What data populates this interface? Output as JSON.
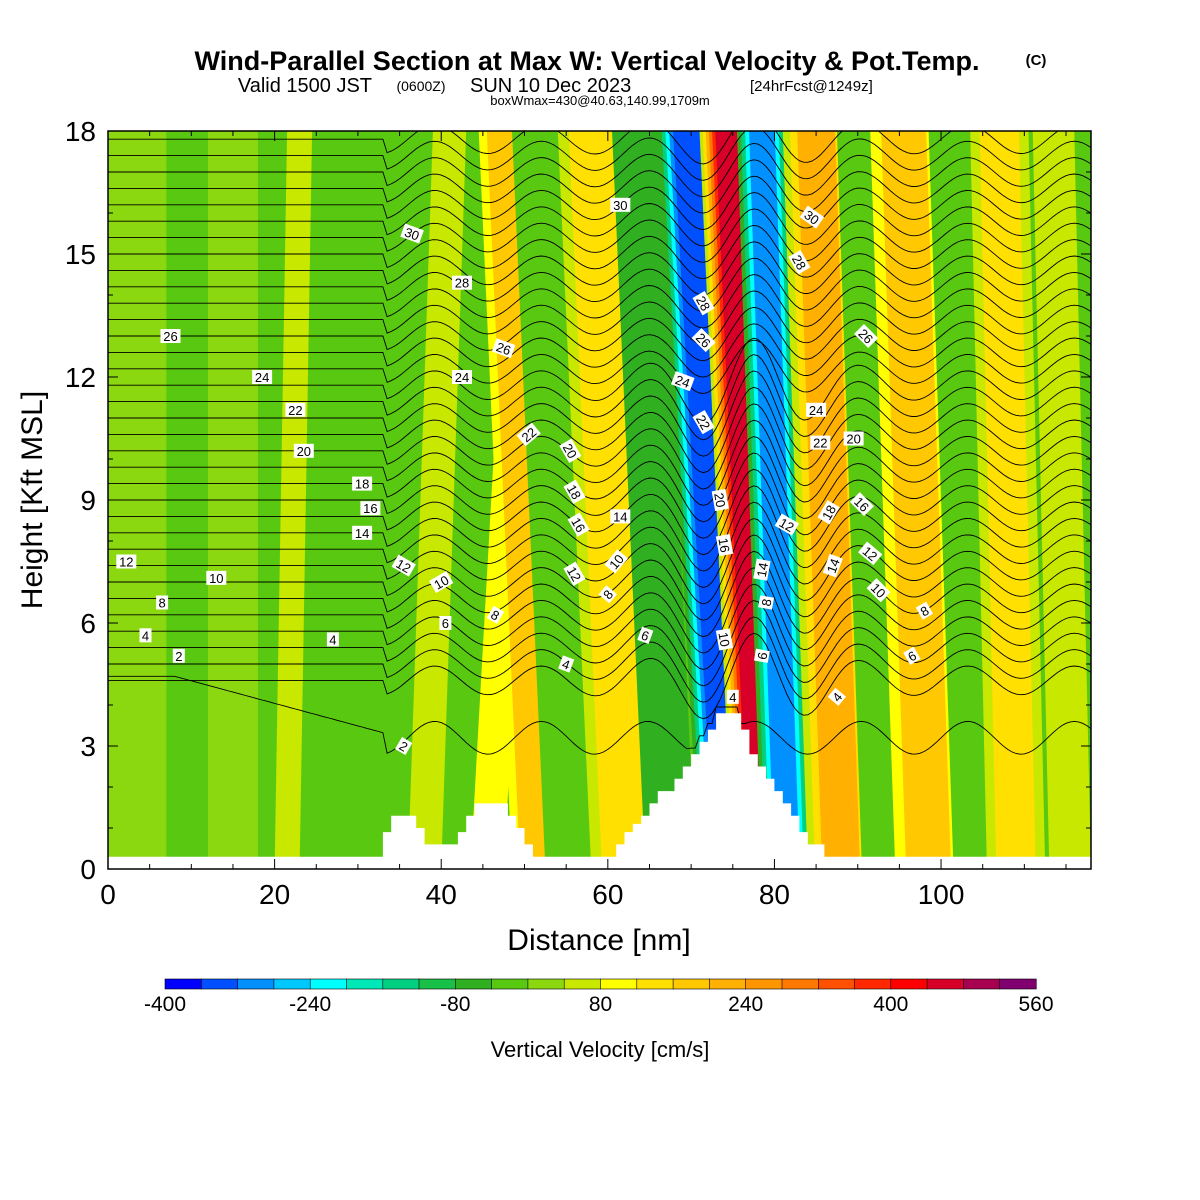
{
  "title": {
    "main": "Wind-Parallel Section at Max W: Vertical Velocity & Pot.Temp.",
    "copyright": "(C)",
    "valid_prefix": "Valid 1500 JST",
    "valid_utc": "(0600Z)",
    "valid_date": "SUN 10 Dec 2023",
    "forecast": "[24hrFcst@1249z]",
    "boxwmax": "boxWmax=430@40.63,140.99,1709m"
  },
  "colorbar": {
    "label": "Vertical Velocity [cm/s]",
    "tick_labels": [
      "-400",
      "-240",
      "-80",
      "80",
      "240",
      "400",
      "560"
    ],
    "levels": [
      -400,
      -360,
      -320,
      -280,
      -240,
      -200,
      -160,
      -120,
      -80,
      -40,
      0,
      40,
      80,
      120,
      160,
      200,
      240,
      280,
      320,
      360,
      400,
      440,
      480,
      520,
      560
    ],
    "colors": [
      "#0000ff",
      "#0050ff",
      "#0090ff",
      "#00c8ff",
      "#00ffff",
      "#00e8b8",
      "#00d080",
      "#18c048",
      "#30b020",
      "#58c810",
      "#8cd810",
      "#c8e800",
      "#ffff00",
      "#ffe000",
      "#ffc800",
      "#ffb000",
      "#ff9600",
      "#ff7800",
      "#ff5000",
      "#ff2800",
      "#ff0000",
      "#d80028",
      "#a80050",
      "#800070",
      "#500090"
    ]
  },
  "chart_data": {
    "type": "heatmap",
    "xlabel": "Distance [nm]",
    "ylabel": "Height [Kft MSL]",
    "xlim": [
      0,
      118
    ],
    "ylim": [
      0,
      18
    ],
    "x_ticks": [
      0,
      20,
      40,
      60,
      80,
      100
    ],
    "y_ticks": [
      0,
      3,
      6,
      9,
      12,
      15,
      18
    ],
    "grid": false,
    "field": "Vertical Velocity [cm/s]",
    "contours": "Potential temperature",
    "terrain_profile": {
      "x": [
        0,
        32,
        33,
        34,
        35,
        36,
        37,
        38,
        39,
        40,
        41,
        42,
        43,
        44,
        45,
        46,
        47,
        48,
        49,
        50,
        51,
        52,
        53,
        54,
        55,
        56,
        57,
        58,
        59,
        60,
        61,
        62,
        63,
        64,
        65,
        66,
        67,
        68,
        69,
        70,
        71,
        72,
        73,
        74,
        75,
        76,
        77,
        78,
        79,
        80,
        81,
        82,
        83,
        84,
        85,
        86,
        118
      ],
      "height": [
        0.3,
        0.3,
        0.9,
        1.3,
        1.3,
        1.3,
        1.0,
        0.6,
        0.6,
        0.6,
        0.6,
        0.9,
        1.3,
        1.6,
        1.6,
        1.6,
        1.6,
        1.3,
        1.0,
        0.6,
        0.3,
        0.3,
        0.3,
        0.3,
        0.3,
        0.3,
        0.3,
        0.3,
        0.3,
        0.3,
        0.6,
        0.9,
        1.1,
        1.3,
        1.6,
        1.9,
        1.9,
        2.2,
        2.5,
        2.8,
        3.1,
        3.4,
        3.8,
        3.8,
        3.8,
        3.4,
        2.8,
        2.5,
        2.2,
        1.9,
        1.6,
        1.3,
        0.9,
        0.6,
        0.6,
        0.3,
        0.3
      ]
    },
    "bands": [
      {
        "x": 3,
        "w": 8,
        "tilt": 0,
        "ybot": 0,
        "ytop": 18
      },
      {
        "x": 15,
        "w": 6,
        "tilt": 0,
        "ybot": 0,
        "ytop": 18
      },
      {
        "x": 21.5,
        "w": 3,
        "tilt": 1.5,
        "ybot": 0,
        "ytop": 18
      },
      {
        "x": 38,
        "w": 4,
        "tilt": 3,
        "ybot": 0,
        "ytop": 18
      },
      {
        "x": 45.5,
        "w": 4,
        "tilt": 5,
        "ybot": 0,
        "ytop": 18
      },
      {
        "x": 51.5,
        "w": 6,
        "tilt": -4,
        "ybot": 0,
        "ytop": 18
      },
      {
        "x": 55.5,
        "w": 6,
        "tilt": -4,
        "ybot": 0,
        "ytop": 18
      },
      {
        "x": 62,
        "w": 8,
        "tilt": -4,
        "ybot": 0,
        "ytop": 18
      },
      {
        "x": 67.5,
        "w": 6,
        "tilt": -4,
        "ybot": 0,
        "ytop": 18
      },
      {
        "x": 74.5,
        "w": 7,
        "tilt": -5,
        "ybot": 0,
        "ytop": 18
      },
      {
        "x": 78.5,
        "w": 7,
        "tilt": -4,
        "ybot": 0,
        "ytop": 18
      },
      {
        "x": 81.5,
        "w": 6,
        "tilt": -3,
        "ybot": 0,
        "ytop": 18
      },
      {
        "x": 88,
        "w": 8,
        "tilt": -3,
        "ybot": 0,
        "ytop": 18
      },
      {
        "x": 93,
        "w": 5,
        "tilt": -3,
        "ybot": 0,
        "ytop": 18
      },
      {
        "x": 98.5,
        "w": 8,
        "tilt": -3,
        "ybot": 0,
        "ytop": 18
      },
      {
        "x": 104,
        "w": 5,
        "tilt": -3,
        "ybot": 0,
        "ytop": 18
      },
      {
        "x": 109,
        "w": 7,
        "tilt": -2,
        "ybot": 0,
        "ytop": 18
      },
      {
        "x": 115.5,
        "w": 5,
        "tilt": -2,
        "ybot": 0,
        "ytop": 18
      }
    ],
    "band_values": [
      20,
      20,
      60,
      60,
      100,
      160,
      -40,
      120,
      -80,
      -360,
      440,
      -320,
      200,
      -40,
      160,
      -40,
      120,
      60
    ],
    "contour_labels": [
      {
        "text": "30",
        "x": 36.5,
        "y": 15.5,
        "angle": 20
      },
      {
        "text": "30",
        "x": 61.5,
        "y": 16.2,
        "angle": 0
      },
      {
        "text": "30",
        "x": 84.5,
        "y": 15.9,
        "angle": 35
      },
      {
        "text": "28",
        "x": 42.5,
        "y": 14.3,
        "angle": 0
      },
      {
        "text": "28",
        "x": 71.5,
        "y": 13.8,
        "angle": 60
      },
      {
        "text": "28",
        "x": 83,
        "y": 14.8,
        "angle": 60
      },
      {
        "text": "26",
        "x": 7.5,
        "y": 13.0,
        "angle": 0
      },
      {
        "text": "26",
        "x": 47.5,
        "y": 12.7,
        "angle": 20
      },
      {
        "text": "26",
        "x": 71.5,
        "y": 12.9,
        "angle": 45
      },
      {
        "text": "26",
        "x": 91,
        "y": 13.0,
        "angle": 45
      },
      {
        "text": "24",
        "x": 18.5,
        "y": 12.0,
        "angle": 0
      },
      {
        "text": "24",
        "x": 42.5,
        "y": 12.0,
        "angle": 0
      },
      {
        "text": "24",
        "x": 69,
        "y": 11.9,
        "angle": 20
      },
      {
        "text": "24",
        "x": 85,
        "y": 11.2,
        "angle": 0
      },
      {
        "text": "22",
        "x": 22.5,
        "y": 11.2,
        "angle": 0
      },
      {
        "text": "22",
        "x": 50.5,
        "y": 10.6,
        "angle": -40
      },
      {
        "text": "22",
        "x": 71.5,
        "y": 10.9,
        "angle": 60
      },
      {
        "text": "22",
        "x": 85.5,
        "y": 10.4,
        "angle": 0
      },
      {
        "text": "20",
        "x": 23.5,
        "y": 10.2,
        "angle": 0
      },
      {
        "text": "20",
        "x": 55.5,
        "y": 10.2,
        "angle": 60
      },
      {
        "text": "20",
        "x": 73.5,
        "y": 9.0,
        "angle": 80
      },
      {
        "text": "20",
        "x": 89.5,
        "y": 10.5,
        "angle": 0
      },
      {
        "text": "18",
        "x": 30.5,
        "y": 9.4,
        "angle": 0
      },
      {
        "text": "18",
        "x": 56,
        "y": 9.2,
        "angle": 60
      },
      {
        "text": "18",
        "x": 86.5,
        "y": 8.7,
        "angle": -60
      },
      {
        "text": "16",
        "x": 31.5,
        "y": 8.8,
        "angle": 0
      },
      {
        "text": "16",
        "x": 56.5,
        "y": 8.4,
        "angle": 60
      },
      {
        "text": "16",
        "x": 74,
        "y": 7.9,
        "angle": 80
      },
      {
        "text": "16",
        "x": 90.5,
        "y": 8.9,
        "angle": 45
      },
      {
        "text": "14",
        "x": 30.5,
        "y": 8.2,
        "angle": 0
      },
      {
        "text": "14",
        "x": 61.5,
        "y": 8.6,
        "angle": 0
      },
      {
        "text": "14",
        "x": 78.5,
        "y": 7.3,
        "angle": -80
      },
      {
        "text": "14",
        "x": 87,
        "y": 7.4,
        "angle": -70
      },
      {
        "text": "12",
        "x": 2.2,
        "y": 7.5,
        "angle": 0
      },
      {
        "text": "12",
        "x": 35.5,
        "y": 7.4,
        "angle": 30
      },
      {
        "text": "12",
        "x": 56,
        "y": 7.2,
        "angle": 60
      },
      {
        "text": "12",
        "x": 81.5,
        "y": 8.4,
        "angle": 30
      },
      {
        "text": "12",
        "x": 91.5,
        "y": 7.7,
        "angle": 40
      },
      {
        "text": "10",
        "x": 13,
        "y": 7.1,
        "angle": 0
      },
      {
        "text": "10",
        "x": 40,
        "y": 7.0,
        "angle": -30
      },
      {
        "text": "10",
        "x": 61,
        "y": 7.5,
        "angle": -50
      },
      {
        "text": "10",
        "x": 74,
        "y": 5.6,
        "angle": 80
      },
      {
        "text": "10",
        "x": 92.5,
        "y": 6.8,
        "angle": 45
      },
      {
        "text": "8",
        "x": 6.5,
        "y": 6.5,
        "angle": 0
      },
      {
        "text": "8",
        "x": 46.5,
        "y": 6.2,
        "angle": 30
      },
      {
        "text": "8",
        "x": 60,
        "y": 6.7,
        "angle": -50
      },
      {
        "text": "8",
        "x": 79,
        "y": 6.5,
        "angle": -80
      },
      {
        "text": "8",
        "x": 98,
        "y": 6.3,
        "angle": -30
      },
      {
        "text": "6",
        "x": 40.5,
        "y": 6.0,
        "angle": 0
      },
      {
        "text": "6",
        "x": 64.5,
        "y": 5.7,
        "angle": 20
      },
      {
        "text": "6",
        "x": 78.5,
        "y": 5.2,
        "angle": -80
      },
      {
        "text": "6",
        "x": 96.5,
        "y": 5.2,
        "angle": -30
      },
      {
        "text": "4",
        "x": 4.5,
        "y": 5.7,
        "angle": 0
      },
      {
        "text": "4",
        "x": 27,
        "y": 5.6,
        "angle": 0
      },
      {
        "text": "4",
        "x": 55,
        "y": 5.0,
        "angle": 20
      },
      {
        "text": "4",
        "x": 75,
        "y": 4.2,
        "angle": 0
      },
      {
        "text": "4",
        "x": 87.5,
        "y": 4.2,
        "angle": -50
      },
      {
        "text": "2",
        "x": 8.5,
        "y": 5.2,
        "angle": 0
      },
      {
        "text": "2",
        "x": 35.5,
        "y": 3.0,
        "angle": 30
      }
    ]
  }
}
